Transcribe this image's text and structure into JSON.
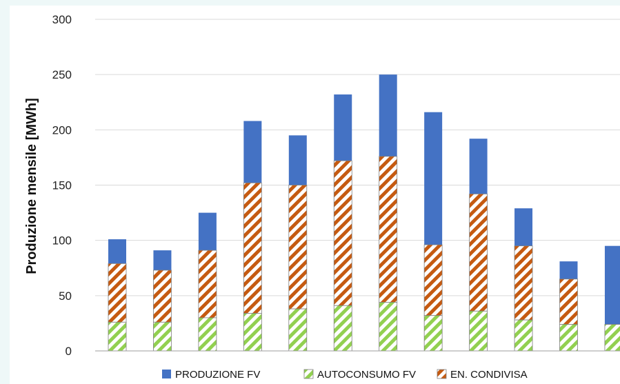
{
  "chart_data": {
    "type": "bar",
    "title": "",
    "xlabel": "",
    "ylabel": "Produzione mensile [MWh]",
    "ylim": [
      0,
      300
    ],
    "yticks": [
      0,
      50,
      100,
      150,
      200,
      250,
      300
    ],
    "grid": true,
    "legend_position": "bottom",
    "categories": [
      "",
      "",
      "",
      "",
      "",
      "",
      "",
      "",
      "",
      "",
      "",
      ""
    ],
    "series": [
      {
        "name": "PRODUZIONE FV",
        "color": "#4472c4",
        "values": [
          101,
          91,
          125,
          208,
          195,
          232,
          250,
          216,
          192,
          129,
          81,
          95
        ]
      },
      {
        "name": "AUTOCONSUMO FV",
        "color": "#92d050",
        "values": [
          26,
          26,
          30,
          34,
          38,
          41,
          44,
          32,
          36,
          28,
          24,
          24
        ]
      },
      {
        "name": "EN. CONDIVISA",
        "color": "#c55a11",
        "values": [
          79,
          73,
          91,
          152,
          150,
          172,
          176,
          96,
          142,
          95,
          65,
          24
        ]
      }
    ]
  }
}
